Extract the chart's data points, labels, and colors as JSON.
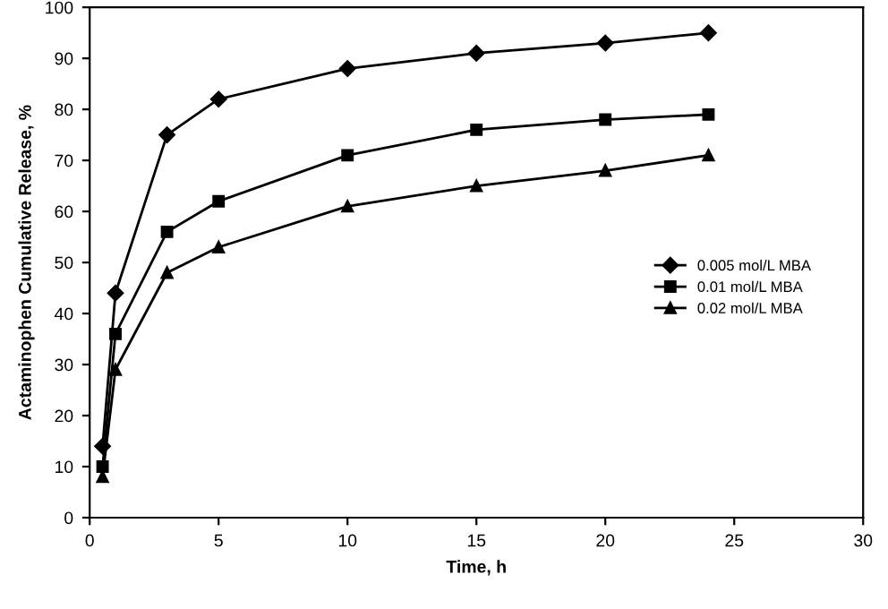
{
  "chart_data": {
    "type": "line",
    "xlabel": "Time, h",
    "ylabel": "Actaminophen Cumulative Release, %",
    "xlim": [
      0,
      30
    ],
    "xticks": [
      0,
      5,
      10,
      15,
      20,
      25,
      30
    ],
    "ylim": [
      0,
      100
    ],
    "yticks": [
      0,
      10,
      20,
      30,
      40,
      50,
      60,
      70,
      80,
      90,
      100
    ],
    "x": [
      0.5,
      1,
      3,
      5,
      10,
      15,
      20,
      24
    ],
    "series": [
      {
        "name": "0.005 mol/L MBA",
        "color": "#000000",
        "marker": "diamond",
        "values": [
          14,
          44,
          75,
          82,
          88,
          91,
          93,
          95
        ]
      },
      {
        "name": "0.01 mol/L MBA",
        "color": "#000000",
        "marker": "square",
        "values": [
          10,
          36,
          56,
          62,
          71,
          76,
          78,
          79
        ]
      },
      {
        "name": "0.02 mol/L MBA",
        "color": "#000000",
        "marker": "triangle",
        "values": [
          8,
          29,
          48,
          53,
          61,
          65,
          68,
          71
        ]
      }
    ],
    "legend": "right",
    "grid": false,
    "line_style": "solid"
  }
}
